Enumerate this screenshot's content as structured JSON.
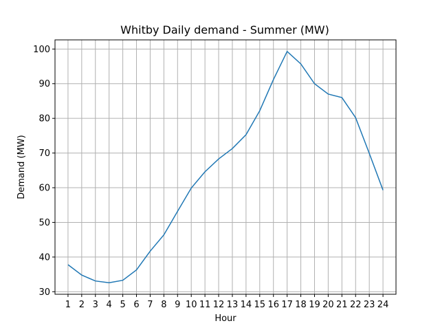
{
  "chart_data": {
    "type": "line",
    "title": "Whitby Daily demand - Summer (MW)",
    "xlabel": "Hour",
    "ylabel": "Demand (MW)",
    "x": [
      1,
      2,
      3,
      4,
      5,
      6,
      7,
      8,
      9,
      10,
      11,
      12,
      13,
      14,
      15,
      16,
      17,
      18,
      19,
      20,
      21,
      22,
      23,
      24
    ],
    "series": [
      {
        "values": [
          37.8,
          34.8,
          33.1,
          32.6,
          33.3,
          36.3,
          41.7,
          46.4,
          53.2,
          59.9,
          64.6,
          68.3,
          71.3,
          75.3,
          82.2,
          91.2,
          99.3,
          95.7,
          90.0,
          87.0,
          86.0,
          80.2,
          69.9,
          59.3
        ],
        "color": "#1f77b4"
      }
    ],
    "xticks": [
      "1",
      "2",
      "3",
      "4",
      "5",
      "6",
      "7",
      "8",
      "9",
      "10",
      "11",
      "12",
      "13",
      "14",
      "15",
      "16",
      "17",
      "18",
      "19",
      "20",
      "21",
      "22",
      "23",
      "24"
    ],
    "yticks": [
      30,
      40,
      50,
      60,
      70,
      80,
      90,
      100
    ],
    "xlim": [
      0.05,
      24.95
    ],
    "ylim": [
      29.27,
      102.64
    ],
    "grid": true,
    "grid_color": "#b0b0b0"
  }
}
